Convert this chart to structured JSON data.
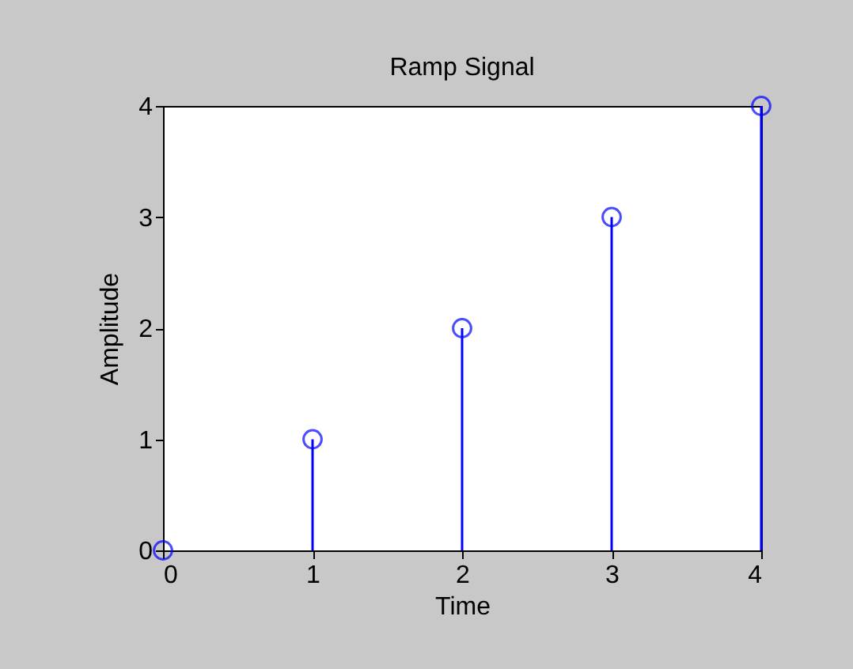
{
  "chart_data": {
    "type": "lollipop",
    "title": "Ramp Signal",
    "xlabel": "Time",
    "ylabel": "Amplitude",
    "x": [
      0,
      1,
      2,
      3,
      4
    ],
    "series": [
      {
        "color": "#0000ff",
        "values": [
          0,
          1,
          2,
          3,
          4
        ]
      }
    ],
    "xlim": [
      0,
      4
    ],
    "xticks": [
      0,
      1,
      2,
      3,
      4
    ],
    "ylim": [
      0,
      4
    ],
    "yticks": [
      0,
      1,
      2,
      3,
      4
    ],
    "marker": "circle",
    "grid": false
  }
}
